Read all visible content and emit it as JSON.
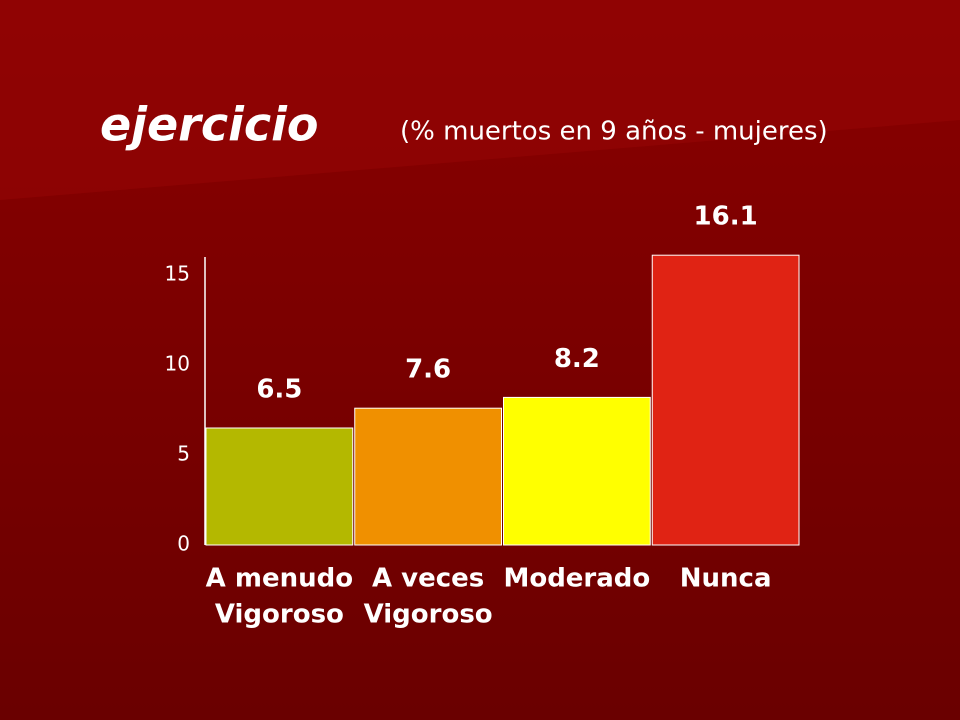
{
  "chart_data": {
    "type": "bar",
    "title": "ejercicio",
    "subtitle": "(% muertos en 9 años - mujeres)",
    "categories": [
      [
        "A menudo",
        "Vigoroso"
      ],
      [
        "A veces",
        "Vigoroso"
      ],
      [
        "Moderado"
      ],
      [
        "Nunca"
      ]
    ],
    "values": [
      6.5,
      7.6,
      8.2,
      16.1
    ],
    "colors": [
      "#b4b800",
      "#f09000",
      "#ffff00",
      "#e02314"
    ],
    "ylim": [
      0,
      16
    ],
    "yticks": [
      0,
      5,
      10,
      15
    ],
    "grid": false
  }
}
